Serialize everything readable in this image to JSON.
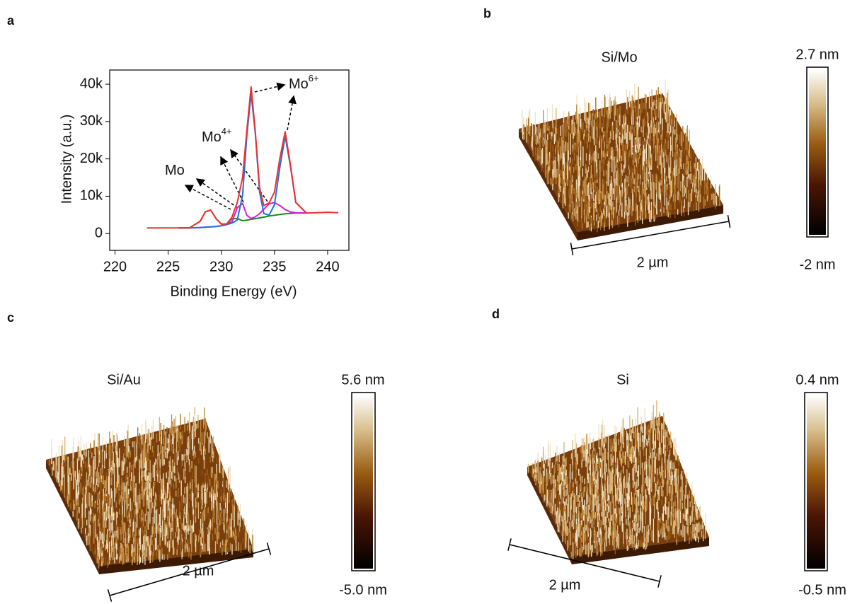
{
  "panel_labels": [
    "a",
    "b",
    "c",
    "d"
  ],
  "chart_data": {
    "type": "line",
    "xlabel": "Binding Energy (eV)",
    "ylabel": "Intensity (a.u.)",
    "x": [
      223,
      224,
      225,
      226,
      227,
      228,
      228.5,
      229,
      229.5,
      230,
      230.5,
      231,
      231.5,
      232,
      232.4,
      232.8,
      233.2,
      233.6,
      234,
      234.5,
      235,
      235.5,
      236,
      236.5,
      237,
      238,
      239,
      240,
      241
    ],
    "series": [
      {
        "color": "#1a8a1a",
        "values": [
          null,
          null,
          null,
          1500,
          1520,
          3270,
          5840,
          6290,
          4040,
          2540,
          2540,
          4000,
          4015,
          3440,
          3600,
          3800,
          4000,
          4200,
          4400,
          4700,
          4900,
          5100,
          5300,
          5400,
          5500,
          5500,
          null,
          null,
          null
        ]
      },
      {
        "color": "#d61fd6",
        "values": [
          null,
          null,
          null,
          1500,
          1500,
          1600,
          1700,
          1800,
          1900,
          2100,
          2400,
          3200,
          6900,
          8080,
          4900,
          4050,
          4475,
          5340,
          6520,
          7960,
          8300,
          7490,
          6440,
          5765,
          5580,
          5500,
          null,
          null,
          null
        ]
      },
      {
        "color": "#1f6fe0",
        "values": [
          null,
          null,
          null,
          1500,
          1500,
          1600,
          1700,
          1800,
          1900,
          2100,
          2400,
          2810,
          3620,
          10340,
          26300,
          37500,
          26700,
          11140,
          5370,
          4960,
          7715,
          17720,
          26100,
          18020,
          8315,
          5500,
          null,
          null,
          null
        ]
      },
      {
        "color": "#f03030",
        "values": [
          1500,
          1500,
          1500,
          1500,
          1520,
          3270,
          5840,
          6290,
          4040,
          2540,
          2540,
          4410,
          8335,
          15060,
          27600,
          39300,
          27175,
          12280,
          7490,
          8220,
          11115,
          20110,
          27250,
          18385,
          8400,
          5500,
          5600,
          5700,
          5600
        ]
      }
    ],
    "xlim": [
      219.5,
      242
    ],
    "ylim": [
      -4500,
      43800
    ],
    "xticks": [
      220,
      225,
      230,
      235,
      240
    ],
    "yticks": [
      0,
      {
        "value": 10000,
        "label": "10k"
      },
      {
        "value": 20000,
        "label": "20k"
      },
      {
        "value": 30000,
        "label": "30k"
      },
      {
        "value": 40000,
        "label": "40k"
      }
    ],
    "grid": false,
    "annotations": [
      {
        "text": "Mo"
      },
      {
        "text": "Mo",
        "sup": "4+"
      },
      {
        "text": "Mo",
        "sup": "6+"
      }
    ]
  },
  "afm": [
    {
      "title": "Si/Mo",
      "scale": "2 µm",
      "max": "2.7 nm",
      "min": "-2 nm"
    },
    {
      "title": "Si/Au",
      "scale": "2 µm",
      "max": "5.6 nm",
      "min": "-5.0 nm"
    },
    {
      "title": "Si",
      "scale": "2 µm",
      "max": "0.4 nm",
      "min": "-0.5 nm"
    }
  ]
}
